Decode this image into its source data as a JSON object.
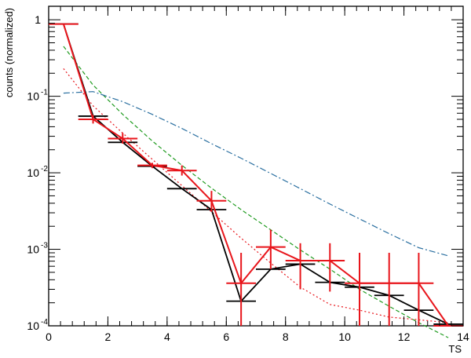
{
  "chart_data": {
    "type": "line",
    "title": "",
    "xlabel": "TS",
    "ylabel": "counts (normalized)",
    "xlim": [
      0,
      14
    ],
    "ylim": [
      0.0001,
      1.5
    ],
    "yscale": "log",
    "grid": false,
    "legend": "none",
    "x_ticks": [
      {
        "value": 0,
        "label": "0"
      },
      {
        "value": 2,
        "label": "2"
      },
      {
        "value": 4,
        "label": "4"
      },
      {
        "value": 6,
        "label": "6"
      },
      {
        "value": 8,
        "label": "8"
      },
      {
        "value": 10,
        "label": "10"
      },
      {
        "value": 12,
        "label": "12"
      },
      {
        "value": 14,
        "label": "14"
      }
    ],
    "y_ticks": [
      {
        "value": 1,
        "base": "1",
        "exp": ""
      },
      {
        "value": 0.1,
        "base": "10",
        "exp": "-1"
      },
      {
        "value": 0.01,
        "base": "10",
        "exp": "-2"
      },
      {
        "value": 0.001,
        "base": "10",
        "exp": "-3"
      },
      {
        "value": 0.0001,
        "base": "10",
        "exp": "-4"
      }
    ],
    "bin_halfwidth": 0.5,
    "series": [
      {
        "kind": "histogram-errorbars",
        "color": "#000000",
        "x": [
          0.5,
          1.5,
          2.5,
          3.5,
          4.5,
          5.5,
          6.5,
          7.5,
          8.5,
          9.5,
          10.5,
          11.5,
          12.5,
          13.5
        ],
        "y": [
          0.88,
          0.055,
          0.025,
          0.0122,
          0.0062,
          0.0033,
          0.00021,
          0.00055,
          0.00064,
          0.00037,
          0.00032,
          0.00025,
          0.00016,
          0.000105
        ]
      },
      {
        "kind": "histogram-errorbars",
        "color": "#e8151b",
        "x": [
          0.5,
          1.5,
          2.5,
          3.5,
          4.5,
          5.5,
          6.5,
          7.5,
          8.5,
          9.5,
          10.5,
          11.5,
          12.5,
          13.5
        ],
        "y": [
          0.88,
          0.05,
          0.028,
          0.0125,
          0.0107,
          0.0043,
          0.00036,
          0.00107,
          0.00071,
          0.00071,
          0.00036,
          0.00036,
          0.00036,
          0.0001
        ],
        "y_low": [
          null,
          0.044,
          0.024,
          0.0115,
          0.0092,
          0.0031,
          0.0001,
          0.00055,
          0.0003,
          0.00028,
          0.0001,
          0.0001,
          0.0001,
          null
        ],
        "y_high": [
          null,
          0.057,
          0.033,
          0.0135,
          0.0125,
          0.0058,
          0.0009,
          0.0018,
          0.0012,
          0.0012,
          0.0009,
          0.0009,
          0.0009,
          null
        ]
      },
      {
        "kind": "curve",
        "style": "dashed",
        "color": "#1f9b1f",
        "x": [
          0.5,
          1.5,
          2.5,
          3.5,
          4.5,
          5.5,
          6.5,
          7.5,
          8.5,
          9.5,
          10.5,
          11.5,
          12.5,
          13.5
        ],
        "y": [
          0.45,
          0.14,
          0.058,
          0.026,
          0.0125,
          0.0063,
          0.0033,
          0.0018,
          0.00098,
          0.00055,
          0.0003,
          0.00018,
          0.00011,
          7e-05
        ]
      },
      {
        "kind": "curve",
        "style": "dotted",
        "color": "#e8151b",
        "x": [
          0.5,
          1.5,
          2.5,
          3.5,
          4.5,
          5.5,
          6.5,
          7.5,
          8.5,
          9.5,
          10.5,
          11.5,
          12.5,
          13.5
        ],
        "y": [
          0.23,
          0.075,
          0.033,
          0.015,
          0.0068,
          0.0031,
          0.0014,
          0.00066,
          0.00032,
          0.00019,
          0.00016,
          0.00013,
          0.00012,
          0.00011
        ]
      },
      {
        "kind": "curve",
        "style": "dash-dot",
        "color": "#2a6fa0",
        "x": [
          0.5,
          1.5,
          2.5,
          3.5,
          4.5,
          5.5,
          6.5,
          7.5,
          8.5,
          9.5,
          10.5,
          11.5,
          12.5,
          13.5
        ],
        "y": [
          0.11,
          0.115,
          0.085,
          0.058,
          0.038,
          0.024,
          0.0155,
          0.0098,
          0.0062,
          0.0039,
          0.0025,
          0.0016,
          0.00105,
          0.00082
        ]
      }
    ]
  }
}
